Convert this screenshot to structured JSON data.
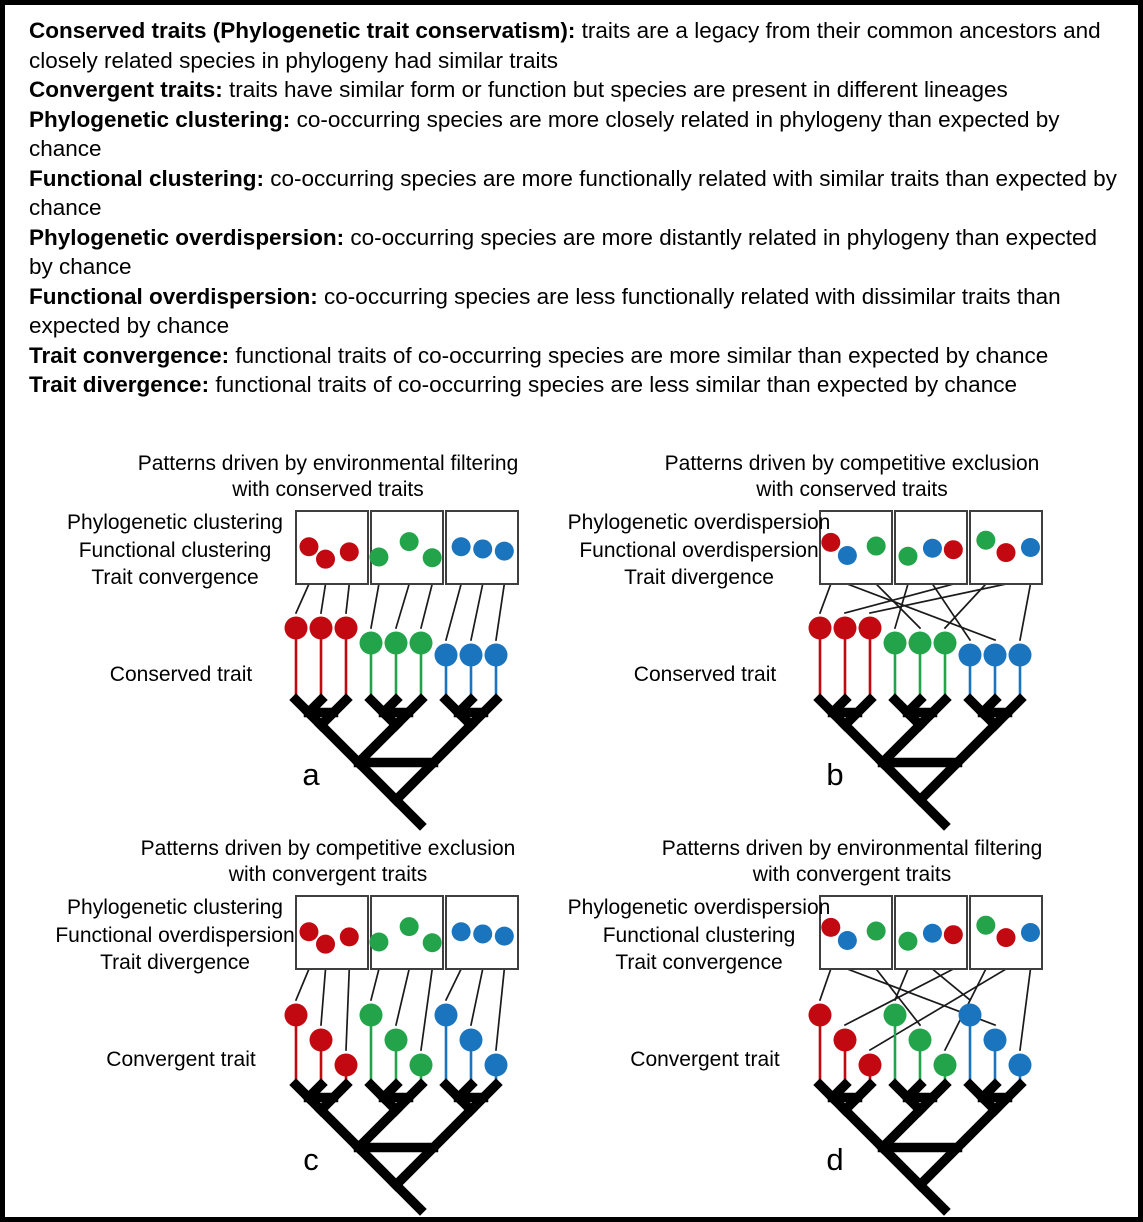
{
  "figure": {
    "background": "#ffffff",
    "border_color": "#000000"
  },
  "definitions": [
    {
      "term": "Conserved traits (Phylogenetic trait conservatism):",
      "text": " traits are a legacy from their common ancestors and closely related species in phylogeny had similar traits"
    },
    {
      "term": "Convergent traits:",
      "text": " traits have similar form or function but species are present in different lineages"
    },
    {
      "term": "Phylogenetic clustering:",
      "text": " co-occurring species are more closely related in phylogeny than expected by chance"
    },
    {
      "term": "Functional clustering:",
      "text": " co-occurring species are more functionally related with similar traits than expected by chance"
    },
    {
      "term": "Phylogenetic overdispersion:",
      "text": " co-occurring species are more distantly related in phylogeny than expected by chance"
    },
    {
      "term": "Functional overdispersion:",
      "text": " co-occurring species are less functionally related with dissimilar traits than expected by chance"
    },
    {
      "term": "Trait convergence:",
      "text": " functional traits of co-occurring species are more similar than expected by chance"
    },
    {
      "term": "Trait divergence:",
      "text": " functional traits of co-occurring species are less similar than expected by chance"
    }
  ],
  "palette": {
    "red": "#c20810",
    "green": "#23a44a",
    "blue": "#1b74be",
    "tree": "#000000",
    "link_line": "#1a1a1a",
    "box_border": "#3f3f3f"
  },
  "species_order": [
    "red",
    "red",
    "red",
    "green",
    "green",
    "green",
    "blue",
    "blue",
    "blue"
  ],
  "panels": [
    {
      "letter": "a",
      "title_line1": "Patterns driven by environmental filtering",
      "title_line2": "with conserved traits",
      "patterns": [
        "Phylogenetic clustering",
        "Functional clustering",
        "Trait convergence"
      ],
      "trait_label": "Conserved trait",
      "trait_type": "conserved",
      "link_style": "parallel",
      "communities": [
        [
          "red",
          "red",
          "red"
        ],
        [
          "green",
          "green",
          "green"
        ],
        [
          "blue",
          "blue",
          "blue"
        ]
      ],
      "link_targets": [
        [
          0,
          1,
          2
        ],
        [
          3,
          4,
          5
        ],
        [
          6,
          7,
          8
        ]
      ]
    },
    {
      "letter": "b",
      "title_line1": "Patterns driven by competitive exclusion",
      "title_line2": "with conserved traits",
      "patterns": [
        "Phylogenetic overdispersion",
        "Functional overdispersion",
        "Trait divergence"
      ],
      "trait_label": "Conserved trait",
      "trait_type": "conserved",
      "link_style": "crossed",
      "communities": [
        [
          "red",
          "blue",
          "green"
        ],
        [
          "green",
          "blue",
          "red"
        ],
        [
          "green",
          "red",
          "blue"
        ]
      ],
      "link_targets": [
        [
          0,
          7,
          4
        ],
        [
          3,
          6,
          1
        ],
        [
          5,
          2,
          8
        ]
      ]
    },
    {
      "letter": "c",
      "title_line1": "Patterns driven by competitive exclusion",
      "title_line2": "with convergent traits",
      "patterns": [
        "Phylogenetic clustering",
        "Functional overdispersion",
        "Trait divergence"
      ],
      "trait_label": "Convergent trait",
      "trait_type": "convergent",
      "link_style": "parallel",
      "communities": [
        [
          "red",
          "red",
          "red"
        ],
        [
          "green",
          "green",
          "green"
        ],
        [
          "blue",
          "blue",
          "blue"
        ]
      ],
      "link_targets": [
        [
          0,
          1,
          2
        ],
        [
          3,
          4,
          5
        ],
        [
          6,
          7,
          8
        ]
      ]
    },
    {
      "letter": "d",
      "title_line1": "Patterns driven by environmental filtering",
      "title_line2": "with convergent traits",
      "patterns": [
        "Phylogenetic overdispersion",
        "Functional clustering",
        "Trait convergence"
      ],
      "trait_label": "Convergent trait",
      "trait_type": "convergent",
      "link_style": "crossed",
      "communities": [
        [
          "red",
          "blue",
          "green"
        ],
        [
          "green",
          "blue",
          "red"
        ],
        [
          "green",
          "red",
          "blue"
        ]
      ],
      "link_targets": [
        [
          0,
          7,
          4
        ],
        [
          3,
          6,
          1
        ],
        [
          5,
          2,
          8
        ]
      ]
    }
  ]
}
